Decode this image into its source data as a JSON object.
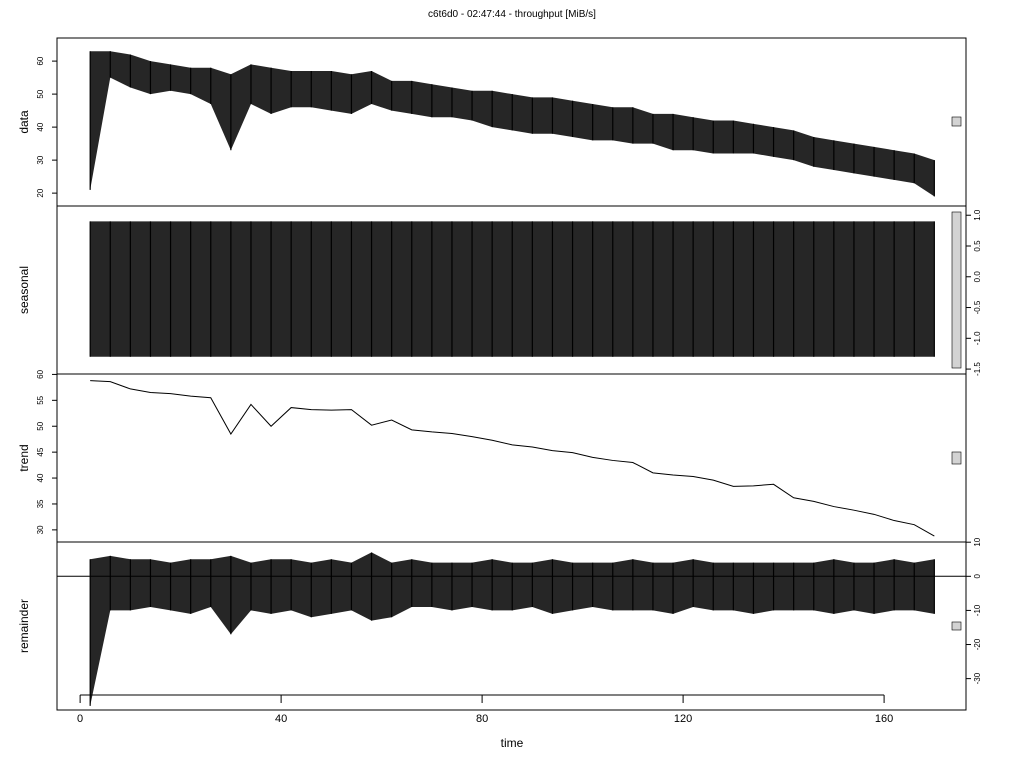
{
  "chart_data": {
    "type": "stl",
    "title": "c6t6d0 - 02:47:44 - throughput [MiB/s]",
    "xlabel": "time",
    "xlim": [
      -4.6,
      176.3
    ],
    "xticks": [
      0,
      40,
      80,
      120,
      160
    ],
    "x": [
      2,
      6,
      10,
      14,
      18,
      22,
      26,
      30,
      34,
      38,
      42,
      46,
      50,
      54,
      58,
      62,
      66,
      70,
      74,
      78,
      82,
      86,
      90,
      94,
      98,
      102,
      106,
      110,
      114,
      118,
      122,
      126,
      130,
      134,
      138,
      142,
      146,
      150,
      154,
      158,
      162,
      166,
      170
    ],
    "panels": [
      {
        "ylabel": "data",
        "side": "left",
        "ylim": [
          16.1,
          67
        ],
        "yticks": [
          20,
          30,
          40,
          50,
          60
        ],
        "upper": [
          63,
          63,
          62,
          60,
          59,
          58,
          58,
          56,
          59,
          58,
          57,
          57,
          57,
          56,
          57,
          54,
          54,
          53,
          52,
          51,
          51,
          50,
          49,
          49,
          48,
          47,
          46,
          46,
          44,
          44,
          43,
          42,
          42,
          41,
          40,
          39,
          37,
          36,
          35,
          34,
          33,
          32,
          30
        ],
        "lower": [
          21,
          55,
          52,
          50,
          51,
          50,
          47,
          33,
          47,
          44,
          46,
          46,
          45,
          44,
          47,
          45,
          44,
          43,
          43,
          42,
          40,
          39,
          38,
          38,
          37,
          36,
          36,
          35,
          35,
          33,
          33,
          32,
          32,
          32,
          31,
          30,
          28,
          27,
          26,
          25,
          24,
          23,
          19
        ]
      },
      {
        "ylabel": "seasonal",
        "side": "right",
        "ylim": [
          -1.58,
          1.15
        ],
        "yticks": [
          {
            "value": 1,
            "label": "1.0"
          },
          0.5,
          {
            "value": 0,
            "label": "0.0"
          },
          -0.5,
          {
            "value": -1,
            "label": "-1.0"
          },
          -1.5
        ],
        "upper": [
          0.9,
          0.9,
          0.9,
          0.9,
          0.9,
          0.9,
          0.9,
          0.9,
          0.9,
          0.9,
          0.9,
          0.9,
          0.9,
          0.9,
          0.9,
          0.9,
          0.9,
          0.9,
          0.9,
          0.9,
          0.9,
          0.9,
          0.9,
          0.9,
          0.9,
          0.9,
          0.9,
          0.9,
          0.9,
          0.9,
          0.9,
          0.9,
          0.9,
          0.9,
          0.9,
          0.9,
          0.9,
          0.9,
          0.9,
          0.9,
          0.9,
          0.9,
          0.9
        ],
        "lower": [
          -1.3,
          -1.3,
          -1.3,
          -1.3,
          -1.3,
          -1.3,
          -1.3,
          -1.3,
          -1.3,
          -1.3,
          -1.3,
          -1.3,
          -1.3,
          -1.3,
          -1.3,
          -1.3,
          -1.3,
          -1.3,
          -1.3,
          -1.3,
          -1.3,
          -1.3,
          -1.3,
          -1.3,
          -1.3,
          -1.3,
          -1.3,
          -1.3,
          -1.3,
          -1.3,
          -1.3,
          -1.3,
          -1.3,
          -1.3,
          -1.3,
          -1.3,
          -1.3,
          -1.3,
          -1.3,
          -1.3,
          -1.3,
          -1.3,
          -1.3
        ]
      },
      {
        "ylabel": "trend",
        "side": "left",
        "ylim": [
          27.66,
          60.08
        ],
        "yticks": [
          30,
          35,
          40,
          45,
          50,
          55,
          60
        ],
        "values": [
          58.8,
          58.6,
          57.2,
          56.5,
          56.3,
          55.8,
          55.5,
          48.5,
          54.2,
          50,
          53.6,
          53.2,
          53.1,
          53.2,
          50.2,
          51.2,
          49.3,
          48.9,
          48.6,
          48,
          47.3,
          46.4,
          46,
          45.3,
          44.9,
          44,
          43.4,
          43,
          41,
          40.6,
          40.3,
          39.6,
          38.4,
          38.5,
          38.8,
          36.2,
          35.5,
          34.5,
          33.8,
          33,
          31.8,
          31,
          28.8
        ]
      },
      {
        "ylabel": "remainder",
        "side": "right",
        "ylim": [
          -39.2,
          10.06
        ],
        "yticks": [
          10,
          0,
          -10,
          -20,
          -30
        ],
        "upper": [
          5,
          6,
          5,
          5,
          4,
          5,
          5,
          6,
          4,
          5,
          5,
          4,
          5,
          4,
          7,
          4,
          5,
          4,
          4,
          4,
          5,
          4,
          4,
          5,
          4,
          4,
          4,
          5,
          4,
          4,
          5,
          4,
          4,
          4,
          4,
          4,
          4,
          5,
          4,
          4,
          5,
          4,
          5
        ],
        "lower": [
          -38,
          -10,
          -10,
          -9,
          -10,
          -11,
          -9,
          -17,
          -10,
          -11,
          -10,
          -12,
          -11,
          -10,
          -13,
          -12,
          -9,
          -9,
          -10,
          -9,
          -10,
          -10,
          -9,
          -11,
          -10,
          -9,
          -10,
          -10,
          -10,
          -11,
          -9,
          -10,
          -10,
          -11,
          -10,
          -10,
          -10,
          -11,
          -10,
          -11,
          -10,
          -10,
          -11
        ]
      }
    ]
  }
}
